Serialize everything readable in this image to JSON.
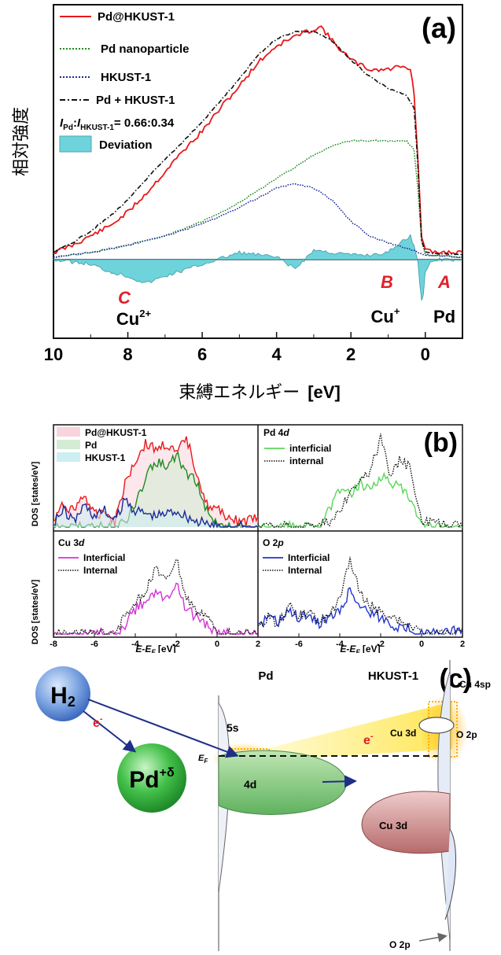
{
  "colors": {
    "red": "#e8191c",
    "green": "#1f8a1f",
    "navy": "#1a2a9a",
    "black": "#111111",
    "cyan": "#6fd3dc",
    "magenta": "#d433d4",
    "blue": "#2233cc",
    "lightgreen": "#5ad65a",
    "accent": "#e0202a"
  },
  "panel_a": {
    "label": "(a)",
    "ylabel": "相対強度",
    "xlabel": "束縛エネルギー",
    "xlabel_unit": "[eV]",
    "ratio_label": {
      "i1": "I",
      "s1": "Pd",
      "colon": ":",
      "i2": "I",
      "s2": "HKUST-1",
      "value": "= 0.66:0.34"
    },
    "deviation_label": "Deviation",
    "annotations": [
      {
        "letter": "C",
        "species": "Cu",
        "sup": "2+"
      },
      {
        "letter": "B",
        "species": "Cu",
        "sup": "+"
      },
      {
        "letter": "A",
        "species": "Pd",
        "sup": ""
      }
    ]
  },
  "panel_b": {
    "label": "(b)",
    "ylabel": "DOS [states/eV]",
    "xlabel": "E-E",
    "xlabel_sub": "F",
    "xlabel_unit": "[eV]",
    "sub1_legend": [
      "Pd@HKUST-1",
      "Pd",
      "HKUST-1"
    ],
    "sub2_title": {
      "a": "Pd 4",
      "b": "d"
    },
    "sub2_legend": [
      "interficial",
      "internal"
    ],
    "sub3_title": {
      "a": "Cu 3",
      "b": "d"
    },
    "sub3_legend": [
      "Interficial",
      "Internal"
    ],
    "sub4_title": {
      "a": "O 2",
      "b": "p"
    },
    "sub4_legend": [
      "Interficial",
      "Internal"
    ]
  },
  "panel_c": {
    "label": "(c)",
    "h2": "H",
    "h2_sub": "2",
    "electron": "e",
    "electron_sup": "-",
    "pd_ball": "Pd",
    "pd_ball_sup": "+δ",
    "pd_title": "Pd",
    "hkust_title": "HKUST-1",
    "s5": "5s",
    "d4": "4d",
    "ef": "E",
    "ef_sub": "F",
    "cu3d_top": "Cu 3d",
    "cu3d_bottom": "Cu 3d",
    "cu4sp": "Cu 4sp",
    "o2p_top": "O 2p",
    "o2p_bottom": "O 2p"
  },
  "chart_data": [
    {
      "type": "line",
      "panel": "a",
      "xlim": [
        10,
        -1
      ],
      "xticks": [
        10,
        8,
        6,
        4,
        2,
        0
      ],
      "x_reversed": true,
      "series": [
        {
          "name": "Pd@HKUST-1",
          "x": [
            10,
            9.5,
            9,
            8.5,
            8,
            7.5,
            7,
            6.5,
            6,
            5.5,
            5,
            4.5,
            4,
            3.5,
            3,
            2.8,
            2.5,
            2,
            1.5,
            1,
            0.6,
            0.4,
            0.3,
            0.2,
            0.1,
            0,
            -0.2,
            -1
          ],
          "y": [
            3,
            6,
            10,
            14,
            20,
            28,
            37,
            46,
            54,
            64,
            73,
            83,
            90,
            94,
            97,
            98,
            92,
            84,
            80,
            80,
            82,
            80,
            70,
            42,
            10,
            4,
            3,
            3
          ]
        },
        {
          "name": "Pd nanoparticle",
          "x": [
            10,
            9,
            8,
            7,
            6,
            5,
            4,
            3,
            2.5,
            2,
            1.5,
            1,
            0.5,
            0.3,
            0.2,
            0.1,
            0,
            -1
          ],
          "y": [
            1,
            3,
            6,
            10,
            16,
            24,
            34,
            44,
            48,
            50,
            50,
            50,
            50,
            46,
            30,
            8,
            2,
            1
          ]
        },
        {
          "name": "HKUST-1",
          "x": [
            10,
            9,
            8,
            7,
            6,
            5,
            4,
            3.5,
            3,
            2.5,
            2,
            1.5,
            1,
            0.5,
            0.2,
            0,
            -1
          ],
          "y": [
            1,
            3,
            6,
            10,
            15,
            22,
            30,
            32,
            30,
            25,
            16,
            10,
            7,
            5,
            3,
            2,
            1
          ]
        },
        {
          "name": "Pd + HKUST-1",
          "x": [
            10,
            9.5,
            9,
            8.5,
            8,
            7.5,
            7,
            6.5,
            6,
            5.5,
            5,
            4.5,
            4,
            3.5,
            3,
            2.5,
            2,
            1.5,
            1,
            0.5,
            0.3,
            0.2,
            0.1,
            0,
            -1
          ],
          "y": [
            3,
            7,
            12,
            18,
            25,
            34,
            42,
            50,
            58,
            67,
            76,
            86,
            93,
            96,
            96,
            92,
            84,
            77,
            72,
            69,
            64,
            40,
            8,
            3,
            2
          ]
        }
      ],
      "deviation": {
        "name": "Deviation",
        "x": [
          10,
          9,
          8.5,
          8,
          7.5,
          7,
          6,
          5,
          4,
          3.5,
          3,
          2,
          1.5,
          1,
          0.6,
          0.4,
          0.3,
          0.2,
          0.15,
          0.1,
          0.05,
          0,
          -0.2,
          -1
        ],
        "y": [
          0,
          -2,
          -5,
          -7,
          -10,
          -7,
          -2,
          3,
          1,
          -4,
          4,
          2,
          2,
          3,
          8,
          10,
          6,
          0,
          -10,
          -18,
          -14,
          -5,
          0,
          0
        ]
      },
      "ratio": "0.66:0.34"
    },
    {
      "type": "line",
      "panel": "b-1",
      "xlim": [
        -8,
        2
      ],
      "series": [
        {
          "name": "Pd@HKUST-1",
          "x": [
            -8,
            -7.5,
            -7,
            -6.5,
            -6,
            -5.5,
            -5,
            -4.5,
            -4,
            -3.5,
            -3,
            -2.5,
            -2,
            -1.5,
            -1,
            -0.5,
            0,
            0.5,
            1,
            1.5,
            2
          ],
          "y": [
            1,
            4,
            3,
            6,
            2,
            3,
            1,
            8,
            12,
            15,
            14,
            15,
            13,
            16,
            10,
            4,
            3,
            2,
            1,
            1,
            2
          ]
        },
        {
          "name": "Pd",
          "x": [
            -8,
            -5,
            -4.5,
            -4,
            -3.5,
            -3,
            -2.5,
            -2,
            -1.5,
            -1,
            -0.5,
            0,
            1,
            2
          ],
          "y": [
            0,
            0,
            1,
            4,
            9,
            12,
            11,
            13,
            10,
            8,
            3,
            1,
            0,
            0
          ]
        },
        {
          "name": "HKUST-1",
          "x": [
            -8,
            -7.5,
            -7,
            -6.5,
            -6,
            -5.5,
            -5,
            -4.5,
            -4,
            -3,
            -2,
            -1,
            0,
            1,
            2
          ],
          "y": [
            1,
            3,
            1,
            4,
            2,
            3,
            1,
            5,
            3,
            2,
            3,
            1,
            0,
            0,
            0
          ]
        }
      ]
    },
    {
      "type": "line",
      "panel": "b-2",
      "xlim": [
        -8,
        2
      ],
      "series": [
        {
          "name": "interficial",
          "x": [
            -8,
            -5,
            -4.5,
            -4,
            -3.5,
            -3,
            -2.5,
            -2,
            -1.5,
            -1,
            -0.5,
            0,
            2
          ],
          "y": [
            0,
            0,
            3,
            6,
            5,
            7,
            6,
            8,
            7,
            6,
            4,
            0,
            0
          ]
        },
        {
          "name": "internal",
          "x": [
            -8,
            -5,
            -4.5,
            -4,
            -3.5,
            -3,
            -2.5,
            -2,
            -1.5,
            -1,
            -0.5,
            0,
            2
          ],
          "y": [
            0,
            0,
            1,
            3,
            5,
            7,
            9,
            14,
            8,
            11,
            9,
            1,
            0
          ]
        }
      ]
    },
    {
      "type": "line",
      "panel": "b-3",
      "xlim": [
        -8,
        2
      ],
      "xticks": [
        -8,
        -6,
        -4,
        -2,
        0,
        2
      ],
      "series": [
        {
          "name": "Interficial",
          "x": [
            -8,
            -5,
            -4.5,
            -4,
            -3.5,
            -3,
            -2.5,
            -2,
            -1.5,
            -1,
            -0.5,
            0,
            2
          ],
          "y": [
            0,
            0,
            1,
            3,
            4,
            5,
            4,
            6,
            3,
            2,
            1,
            0,
            0
          ]
        },
        {
          "name": "Internal",
          "x": [
            -8,
            -5,
            -4.5,
            -4,
            -3.5,
            -3,
            -2.5,
            -2,
            -1.5,
            -1,
            -0.5,
            0,
            2
          ],
          "y": [
            0,
            0,
            2,
            4,
            5,
            8,
            6,
            9,
            4,
            3,
            2,
            0,
            0
          ]
        }
      ]
    },
    {
      "type": "line",
      "panel": "b-4",
      "xlim": [
        -8,
        2
      ],
      "xticks": [
        -8,
        -6,
        -4,
        -2,
        0,
        2
      ],
      "series": [
        {
          "name": "Interficial",
          "x": [
            -8,
            -7.5,
            -7,
            -6.5,
            -6,
            -5.5,
            -5,
            -4.5,
            -4,
            -3.5,
            -3,
            -2.5,
            -2,
            -1.5,
            -1,
            -0.5,
            0,
            1,
            2
          ],
          "y": [
            1,
            3,
            2,
            4,
            3,
            3,
            2,
            3,
            4,
            8,
            5,
            4,
            3,
            2,
            1,
            1,
            0,
            0,
            1
          ]
        },
        {
          "name": "Internal",
          "x": [
            -8,
            -7.5,
            -7,
            -6.5,
            -6,
            -5.5,
            -5,
            -4.5,
            -4,
            -3.5,
            -3,
            -2.5,
            -2,
            -1.5,
            -1,
            -0.5,
            0,
            1,
            2
          ],
          "y": [
            1,
            3,
            2,
            5,
            3,
            4,
            2,
            4,
            6,
            14,
            7,
            5,
            4,
            3,
            2,
            1,
            0,
            0,
            1
          ]
        }
      ]
    }
  ]
}
